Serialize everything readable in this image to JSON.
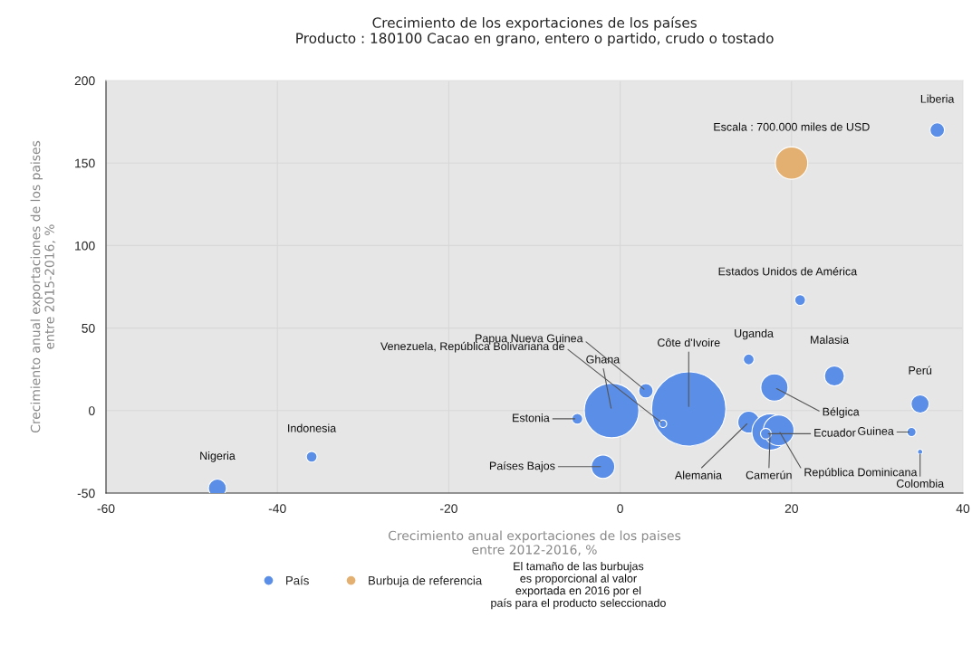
{
  "chart_data": {
    "type": "bubble",
    "title": "Crecimiento de los exportaciones de los países",
    "subtitle": "Producto : 180100 Cacao en grano, entero o partido, crudo o tostado",
    "xlabel": "Crecimiento anual exportaciones de los paises\nentre 2012-2016, %",
    "ylabel": "Crecimiento anual exportaciones de los paises\nentre 2015-2016, %",
    "xlim": [
      -60,
      40
    ],
    "xticks": [
      -60,
      -40,
      -20,
      0,
      20,
      40
    ],
    "ylim": [
      -50,
      200
    ],
    "yticks": [
      -50,
      0,
      50,
      100,
      150,
      200
    ],
    "grid": true,
    "legend": "bottom",
    "series": [
      {
        "name": "País",
        "color": "#5b8ee6",
        "x": [
          37,
          21,
          15,
          25,
          35,
          18,
          8,
          -1,
          3,
          5,
          -5,
          -2,
          -36,
          -47,
          15,
          17.5,
          18.5,
          17,
          34,
          35
        ],
        "values": [
          170,
          67,
          31,
          21,
          4,
          14,
          1,
          0,
          12,
          -8,
          -5,
          -34,
          -28,
          -47,
          -7,
          -13,
          -12,
          -14,
          -13,
          -25
        ],
        "sizes": [
          0.038,
          0.021,
          0.021,
          0.072,
          0.059,
          0.134,
          1,
          0.54,
          0.038,
          0.01,
          0.021,
          0.1,
          0.021,
          0.059,
          0.086,
          0.24,
          0.17,
          0.021,
          0.015,
          0.005
        ]
      },
      {
        "name": "Burbuja de referencia",
        "color": "#e3b072",
        "x": [
          20
        ],
        "values": [
          150
        ],
        "sizes": [
          0.19
        ]
      }
    ],
    "annotations": [
      {
        "text": "Liberia",
        "x": 37,
        "y": 170
      },
      {
        "text": "Estados Unidos de América",
        "x": 21,
        "y": 67
      },
      {
        "text": "Uganda",
        "x": 15,
        "y": 31
      },
      {
        "text": "Malasia",
        "x": 25,
        "y": 21
      },
      {
        "text": "Perú",
        "x": 35,
        "y": 4
      },
      {
        "text": "Bélgica",
        "x": 18,
        "y": 14
      },
      {
        "text": "Côte d'Ivoire",
        "x": 8,
        "y": 1
      },
      {
        "text": "Ghana",
        "x": -1,
        "y": 0
      },
      {
        "text": "Papua Nueva Guinea",
        "x": 3,
        "y": 12
      },
      {
        "text": "Venezuela, República Bolivariana de",
        "x": 5,
        "y": -8
      },
      {
        "text": "Estonia",
        "x": -5,
        "y": -5
      },
      {
        "text": "Países Bajos",
        "x": -2,
        "y": -34
      },
      {
        "text": "Indonesia",
        "x": -36,
        "y": -28
      },
      {
        "text": "Nigeria",
        "x": -47,
        "y": -47
      },
      {
        "text": "Alemania",
        "x": 15,
        "y": -7
      },
      {
        "text": "Camerún",
        "x": 17.5,
        "y": -13
      },
      {
        "text": "República Dominicana",
        "x": 18.5,
        "y": -12
      },
      {
        "text": "Ecuador",
        "x": 17,
        "y": -14
      },
      {
        "text": "Guinea",
        "x": 34,
        "y": -13
      },
      {
        "text": "Colombia",
        "x": 35,
        "y": -25
      },
      {
        "text": "Escala : 700.000 miles de USD",
        "x": 20,
        "y": 150
      },
      "El tamaño de las burbujas\nes proporcional al valor\nexportada en 2016 por el\npaís para el producto seleccionado"
    ]
  }
}
